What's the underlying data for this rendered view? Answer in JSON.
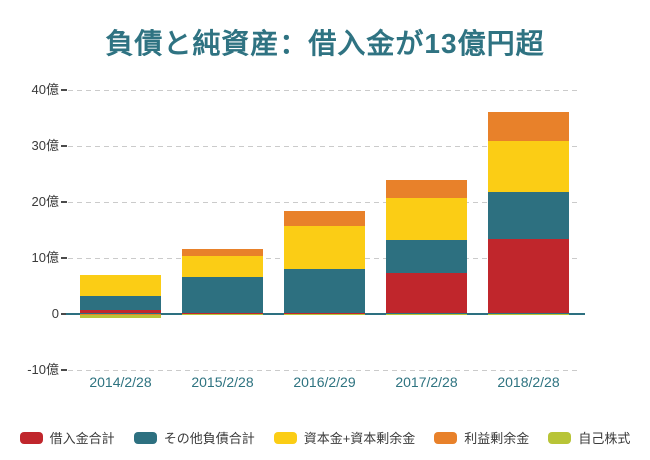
{
  "title": "負債と純資産：借入金が13億円超",
  "chart_data": {
    "type": "bar",
    "stacked": true,
    "unit": "億円",
    "categories": [
      "2014/2/28",
      "2015/2/28",
      "2016/2/29",
      "2017/2/28",
      "2018/2/28"
    ],
    "series": [
      {
        "name": "借入金合計",
        "color": "#c0262c",
        "values": [
          0.7,
          0.15,
          0.1,
          7.3,
          13.3
        ]
      },
      {
        "name": "その他負債合計",
        "color": "#2d7080",
        "values": [
          2.5,
          6.3,
          7.9,
          5.9,
          8.4
        ]
      },
      {
        "name": "資本金+資本剰余金",
        "color": "#fbcd15",
        "values": [
          3.6,
          3.8,
          7.7,
          7.5,
          9.1
        ]
      },
      {
        "name": "利益剰余金",
        "color": "#e8812a",
        "values": [
          -0.35,
          1.2,
          2.6,
          3.1,
          5.1
        ]
      },
      {
        "name": "自己株式",
        "color": "#b8c437",
        "values": [
          -0.5,
          -0.1,
          -0.1,
          -0.3,
          -0.3
        ]
      }
    ],
    "y_ticks": [
      {
        "label": "40億",
        "value": 40
      },
      {
        "label": "30億",
        "value": 30
      },
      {
        "label": "20億",
        "value": 20
      },
      {
        "label": "10億",
        "value": 10
      },
      {
        "label": "0",
        "value": 0
      },
      {
        "label": "-10億",
        "value": -10
      }
    ],
    "ylim": [
      -10,
      40
    ],
    "grid": "dashed-horizontal",
    "legend_position": "bottom"
  },
  "colors": {
    "title": "#2f7382",
    "axis_line": "#2d7080",
    "category_label": "#2e7380",
    "tick_label": "#3b3b3b",
    "grid": "#cbcbcb",
    "background": "#ffffff"
  }
}
